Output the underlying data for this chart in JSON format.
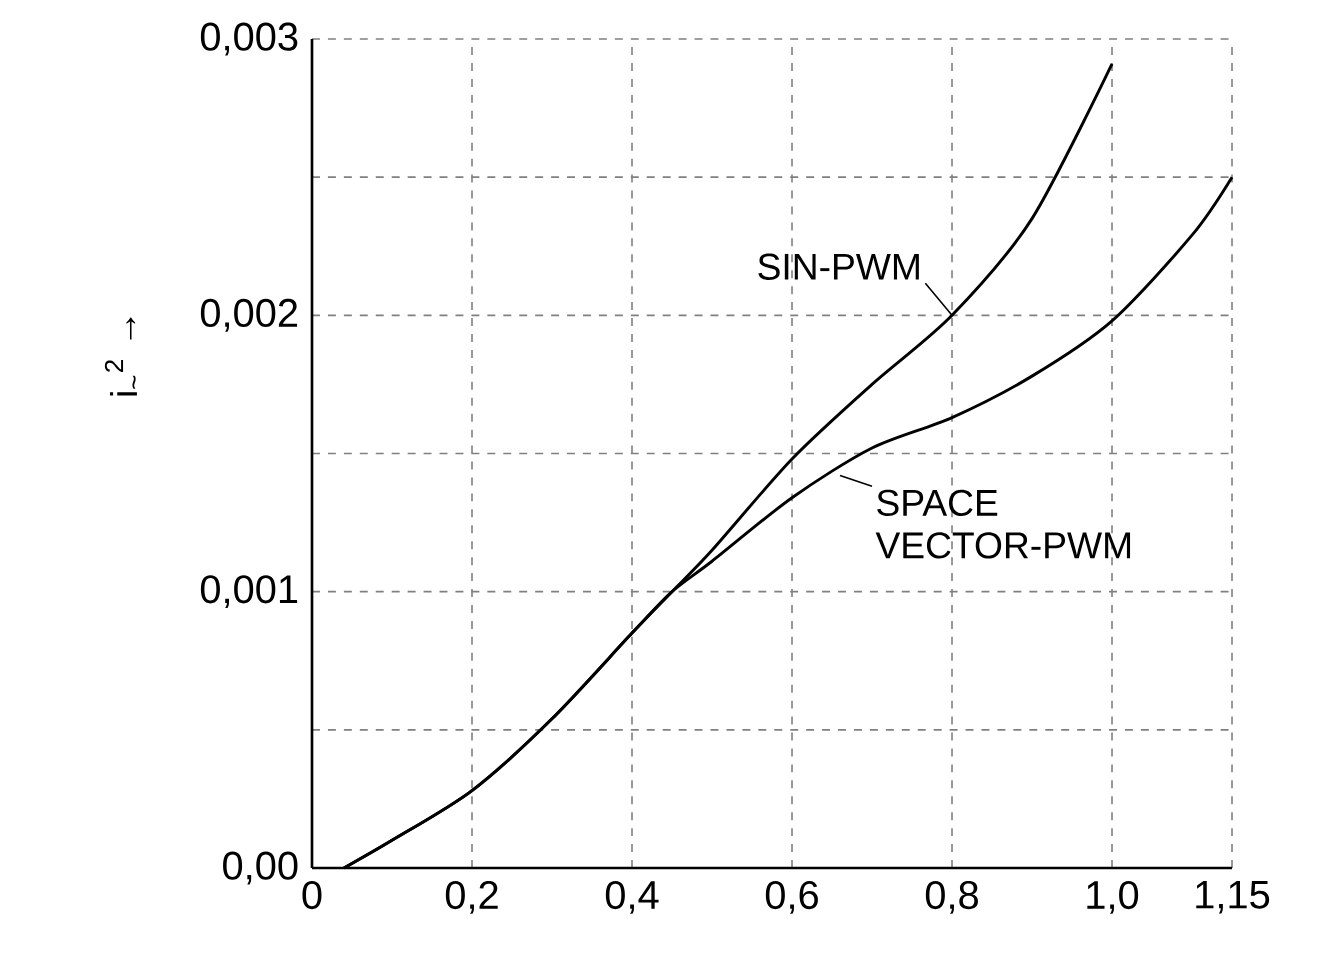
{
  "chart_data": {
    "type": "line",
    "ylabel": "i$_{~}$$^{2}$ →",
    "series": [
      {
        "color": "#000000",
        "x": [
          0.04,
          0.1,
          0.2,
          0.3,
          0.4,
          0.45,
          0.5,
          0.6,
          0.7,
          0.8,
          0.9,
          1.0
        ],
        "values": [
          0.0,
          0.0001,
          0.00028,
          0.00054,
          0.00085,
          0.001,
          0.00115,
          0.00148,
          0.00175,
          0.002,
          0.00235,
          0.00291
        ]
      },
      {
        "color": "#000000",
        "x": [
          0.04,
          0.1,
          0.2,
          0.3,
          0.4,
          0.45,
          0.5,
          0.6,
          0.7,
          0.8,
          0.9,
          1.0,
          1.1,
          1.15
        ],
        "values": [
          0.0,
          0.0001,
          0.00028,
          0.00054,
          0.00085,
          0.001,
          0.00111,
          0.00134,
          0.00152,
          0.00163,
          0.00178,
          0.00198,
          0.00229,
          0.0025
        ]
      }
    ],
    "xlim": [
      0,
      1.15
    ],
    "ylim": [
      0,
      0.003
    ],
    "xticks": [
      0,
      {
        "value": 0.2,
        "label": "0,2"
      },
      {
        "value": 0.4,
        "label": "0,4"
      },
      {
        "value": 0.6,
        "label": "0,6"
      },
      {
        "value": 0.8,
        "label": "0,8"
      },
      {
        "value": 1.0,
        "label": "1,0"
      },
      {
        "value": 1.15,
        "label": "1,15"
      }
    ],
    "yticks": [
      {
        "value": 0,
        "label": "0,00"
      },
      {
        "value": 0.0005,
        "label": null
      },
      {
        "value": 0.001,
        "label": "0,001"
      },
      {
        "value": 0.0015,
        "label": null
      },
      {
        "value": 0.002,
        "label": "0,002"
      },
      {
        "value": 0.0025,
        "label": null
      },
      {
        "value": 0.003,
        "label": "0,003"
      }
    ],
    "grid": true,
    "line_style": "solid",
    "marker": "none",
    "annotations": [
      {
        "text": "SIN-PWM",
        "x": 0.8,
        "y": 0.002
      },
      {
        "text": "SPACE VECTOR-PWM",
        "x": 0.66,
        "y": 0.00142
      }
    ]
  }
}
